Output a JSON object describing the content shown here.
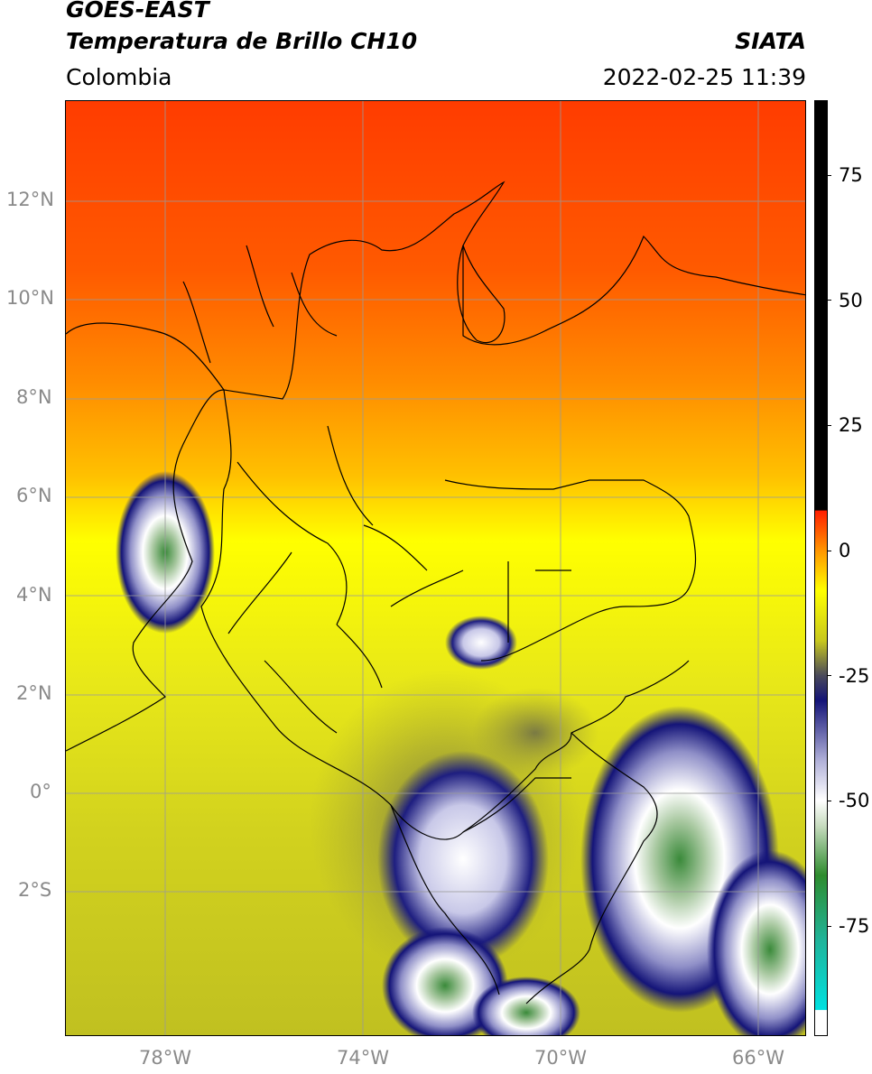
{
  "header": {
    "satellite": "GOES-EAST",
    "product": "Temperatura de Brillo CH10",
    "region": "Colombia",
    "source": "SIATA",
    "timestamp": "2022-02-25 11:39"
  },
  "map": {
    "lat_labels": [
      "12°N",
      "10°N",
      "8°N",
      "6°N",
      "4°N",
      "2°N",
      "0°",
      "2°S"
    ],
    "lon_labels": [
      "78°W",
      "74°W",
      "70°W",
      "66°W"
    ],
    "gridline_color": "#9a9a9a",
    "border_color": "#000000"
  },
  "colorbar": {
    "tick_labels": [
      "75",
      "50",
      "25",
      "0",
      "-25",
      "-50",
      "-75"
    ],
    "tick_values": [
      75,
      50,
      25,
      0,
      -25,
      -50,
      -75
    ],
    "range": [
      -97,
      90
    ],
    "stops": [
      {
        "v": -97,
        "c": "#ffffff"
      },
      {
        "v": -92,
        "c": "#ffffff"
      },
      {
        "v": -91.9,
        "c": "#00e0e0"
      },
      {
        "v": -78,
        "c": "#20b49a"
      },
      {
        "v": -65,
        "c": "#2e8c2e"
      },
      {
        "v": -55,
        "c": "#c8dcc0"
      },
      {
        "v": -50,
        "c": "#ffffff"
      },
      {
        "v": -42,
        "c": "#b0b0d8"
      },
      {
        "v": -30,
        "c": "#141478"
      },
      {
        "v": -25,
        "c": "#4a4a5a"
      },
      {
        "v": -18,
        "c": "#c8c81e"
      },
      {
        "v": -8,
        "c": "#ffff00"
      },
      {
        "v": 0,
        "c": "#ff9600"
      },
      {
        "v": 8,
        "c": "#ff1e00"
      },
      {
        "v": 8.1,
        "c": "#000000"
      },
      {
        "v": 90,
        "c": "#000000"
      }
    ]
  }
}
